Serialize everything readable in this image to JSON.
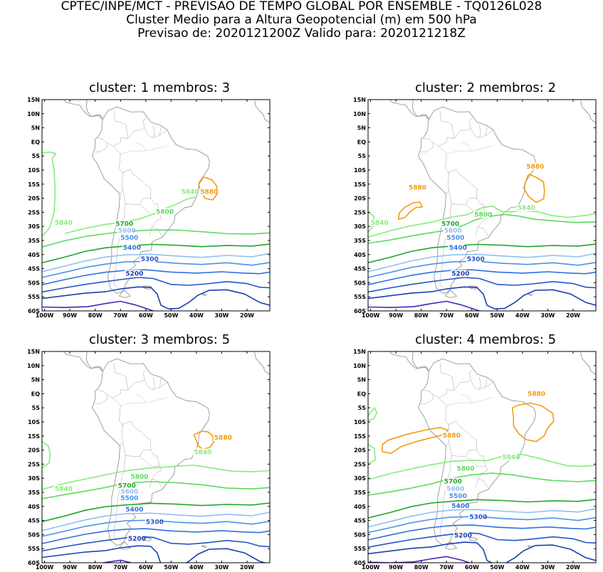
{
  "header": {
    "line1": "CPTEC/INPE/MCT - PREVISAO DE TEMPO GLOBAL POR ENSEMBLE - TQ0126L028",
    "line2": "Cluster Medio para a Altura Geopotencial (m) em 500 hPa",
    "line3": "Previsao de: 2020121200Z    Valido para: 2020121218Z"
  },
  "axes": {
    "lat_labels": [
      "15N",
      "10N",
      "5N",
      "EQ",
      "5S",
      "10S",
      "15S",
      "20S",
      "25S",
      "30S",
      "35S",
      "40S",
      "45S",
      "50S",
      "55S",
      "60S"
    ],
    "lon_labels": [
      "100W",
      "90W",
      "80W",
      "70W",
      "60W",
      "50W",
      "40W",
      "30W",
      "20W"
    ]
  },
  "colors": {
    "5200": "#1a3fb0",
    "5300": "#2456c8",
    "5400": "#2f70dc",
    "5500": "#4b92e6",
    "5600": "#8fc0f2",
    "5700": "#22a62a",
    "5800": "#5ed95c",
    "5840": "#86ec7c",
    "5880": "#f59b0e",
    "5100": "#4b26b4",
    "land": "#8a8a8a"
  },
  "panels": [
    {
      "title": "cluster: 1   membros: 3",
      "labels": [
        {
          "text": "5880",
          "color": "5880",
          "lon": -38.5,
          "lat": -18.5
        },
        {
          "text": "5840",
          "color": "5840",
          "lon": -46,
          "lat": -18.5
        },
        {
          "text": "5840",
          "color": "5840",
          "lon": -96,
          "lat": -29.5
        },
        {
          "text": "5800",
          "color": "5800",
          "lon": -56,
          "lat": -25.5
        },
        {
          "text": "5700",
          "color": "5700",
          "lon": -72,
          "lat": -29.8
        },
        {
          "text": "5600",
          "color": "5600",
          "lon": -71,
          "lat": -32.2
        },
        {
          "text": "5500",
          "color": "5500",
          "lon": -70,
          "lat": -34.7
        },
        {
          "text": "5400",
          "color": "5400",
          "lon": -69,
          "lat": -38.3
        },
        {
          "text": "5300",
          "color": "5300",
          "lon": -62,
          "lat": -42.3
        },
        {
          "text": "5200",
          "color": "5200",
          "lon": -68,
          "lat": -47.5
        }
      ]
    },
    {
      "title": "cluster: 2   membros: 2",
      "labels": [
        {
          "text": "5880",
          "color": "5880",
          "lon": -38.5,
          "lat": -9.5
        },
        {
          "text": "5880",
          "color": "5880",
          "lon": -85,
          "lat": -17
        },
        {
          "text": "5800",
          "color": "5800",
          "lon": -59,
          "lat": -26.5
        },
        {
          "text": "5840",
          "color": "5840",
          "lon": -42,
          "lat": -24.2
        },
        {
          "text": "5840",
          "color": "5840",
          "lon": -100,
          "lat": -29.5
        },
        {
          "text": "5700",
          "color": "5700",
          "lon": -72,
          "lat": -29.8
        },
        {
          "text": "5600",
          "color": "5600",
          "lon": -71,
          "lat": -32.2
        },
        {
          "text": "5500",
          "color": "5500",
          "lon": -70,
          "lat": -34.7
        },
        {
          "text": "5400",
          "color": "5400",
          "lon": -69,
          "lat": -38.3
        },
        {
          "text": "5300",
          "color": "5300",
          "lon": -62,
          "lat": -42.3
        },
        {
          "text": "5200",
          "color": "5200",
          "lon": -68,
          "lat": -47.5
        }
      ]
    },
    {
      "title": "cluster: 3   membros: 5",
      "labels": [
        {
          "text": "5880",
          "color": "5880",
          "lon": -33,
          "lat": -16.3
        },
        {
          "text": "5840",
          "color": "5840",
          "lon": -41,
          "lat": -21.5
        },
        {
          "text": "5840",
          "color": "5840",
          "lon": -96,
          "lat": -34.5
        },
        {
          "text": "5800",
          "color": "5800",
          "lon": -66,
          "lat": -30.2
        },
        {
          "text": "5700",
          "color": "5700",
          "lon": -71,
          "lat": -33.3
        },
        {
          "text": "5600",
          "color": "5600",
          "lon": -70,
          "lat": -35.5
        },
        {
          "text": "5500",
          "color": "5500",
          "lon": -70,
          "lat": -37.8
        },
        {
          "text": "5400",
          "color": "5400",
          "lon": -68,
          "lat": -41.8
        },
        {
          "text": "5300",
          "color": "5300",
          "lon": -60,
          "lat": -46.3
        },
        {
          "text": "5200",
          "color": "5200",
          "lon": -67,
          "lat": -52.2
        }
      ]
    },
    {
      "title": "cluster: 4   membros: 5",
      "labels": [
        {
          "text": "5880",
          "color": "5880",
          "lon": -38,
          "lat": -0.8
        },
        {
          "text": "5880",
          "color": "5880",
          "lon": -71.5,
          "lat": -15.5
        },
        {
          "text": "5840",
          "color": "5840",
          "lon": -48,
          "lat": -23.3
        },
        {
          "text": "5800",
          "color": "5800",
          "lon": -66,
          "lat": -27.3
        },
        {
          "text": "5700",
          "color": "5700",
          "lon": -71,
          "lat": -31.8
        },
        {
          "text": "5600",
          "color": "5600",
          "lon": -70,
          "lat": -34.5
        },
        {
          "text": "5500",
          "color": "5500",
          "lon": -69,
          "lat": -37
        },
        {
          "text": "5400",
          "color": "5400",
          "lon": -68,
          "lat": -40.5
        },
        {
          "text": "5300",
          "color": "5300",
          "lon": -61,
          "lat": -44.5
        },
        {
          "text": "5200",
          "color": "5200",
          "lon": -67,
          "lat": -51
        }
      ]
    }
  ]
}
